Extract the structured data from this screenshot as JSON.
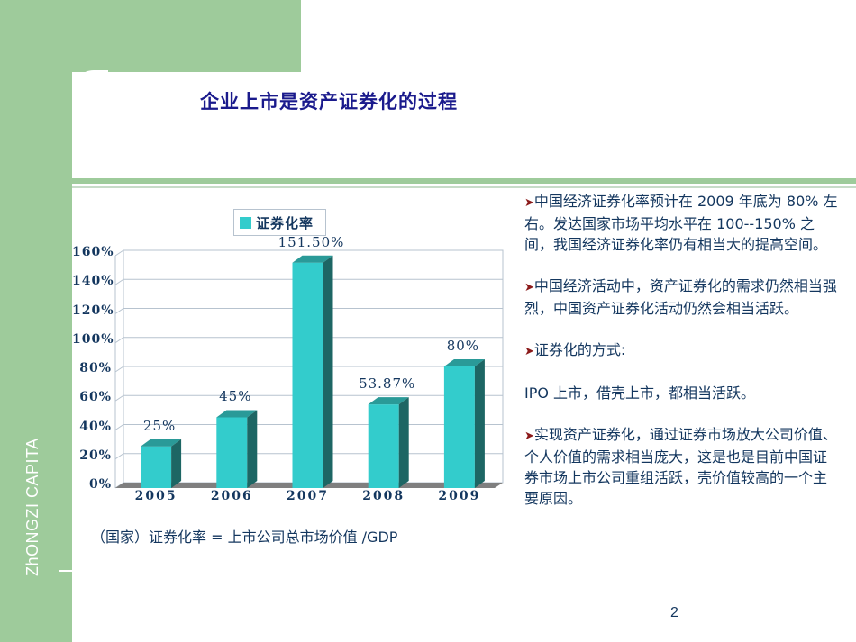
{
  "brand": {
    "vertical_text": "ZhONGZI  CAPITA",
    "colors": {
      "green": "#9ecb9b",
      "title_blue": "#1a1a8c",
      "text_navy": "#13365e",
      "bar_front": "#33cccc",
      "bar_top": "#2a9a98",
      "bar_side": "#1d6664",
      "arrow_red": "#8b1a1a"
    }
  },
  "title": "企业上市是资产证券化的过程",
  "legend": {
    "label": "证券化率"
  },
  "chart_data": {
    "type": "bar",
    "style": "3d-column",
    "title": "",
    "categories": [
      "2005",
      "2006",
      "2007",
      "2008",
      "2009"
    ],
    "series": [
      {
        "name": "证券化率",
        "values": [
          25,
          45,
          151.5,
          53.87,
          80
        ]
      }
    ],
    "data_labels": [
      "25%",
      "45%",
      "151.50%",
      "53.87%",
      "80%"
    ],
    "y_ticks": [
      "0%",
      "20%",
      "40%",
      "60%",
      "80%",
      "100%",
      "120%",
      "140%",
      "160%"
    ],
    "ylim": [
      0,
      160
    ],
    "xlabel": "",
    "ylabel": "",
    "grid": true,
    "legend_position": "top"
  },
  "formula": "（国家）证券化率 = 上市公司总市场价值 /GDP",
  "bullets": [
    {
      "arrow": true,
      "text": "中国经济证券化率预计在 2009 年底为 80% 左右。发达国家市场平均水平在 100--150% 之间，我国经济证券化率仍有相当大的提高空间。"
    },
    {
      "arrow": true,
      "text": "中国经济活动中，资产证券化的需求仍然相当强烈，中国资产证券化活动仍然会相当活跃。"
    },
    {
      "arrow": true,
      "text": "证券化的方式:"
    },
    {
      "arrow": false,
      "text": "IPO 上市，借壳上市，都相当活跃。"
    },
    {
      "arrow": true,
      "text": "实现资产证券化，通过证券市场放大公司价值、个人价值的需求相当庞大，这是也是目前中国证券市场上市公司重组活跃，壳价值较高的一个主要原因。"
    }
  ],
  "page_number": "2"
}
